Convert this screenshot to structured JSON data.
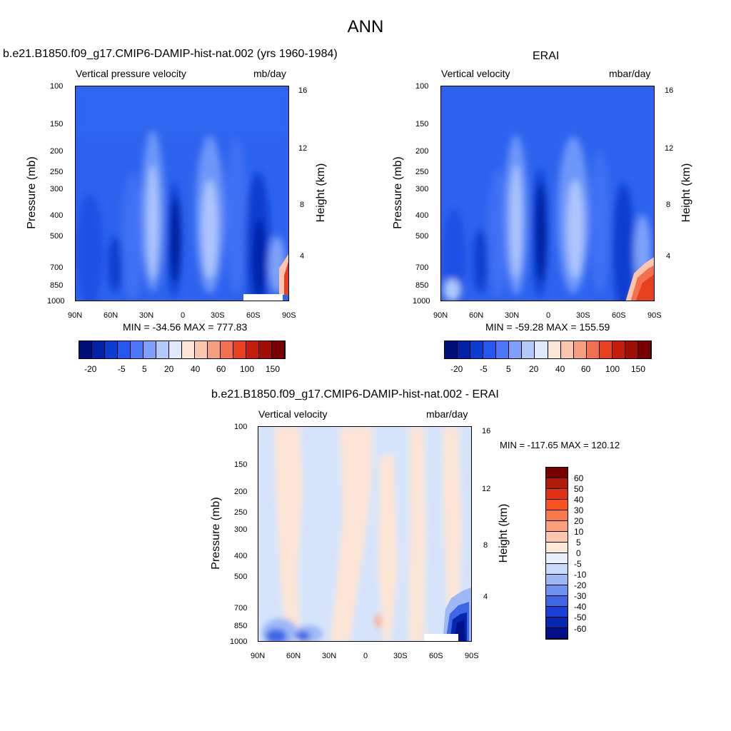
{
  "title": "ANN",
  "panels": [
    {
      "id": "model",
      "header": "b.e21.B1850.f09_g17.CMIP6-DAMIP-hist-nat.002 (yrs 1960-1984)",
      "variable": "Vertical pressure velocity",
      "units": "mb/day",
      "stats": "MIN = -34.56  MAX = 777.83"
    },
    {
      "id": "obs",
      "header": "ERAI",
      "variable": "Vertical velocity",
      "units": "mbar/day",
      "stats": "MIN = -59.28  MAX = 155.59"
    },
    {
      "id": "diff",
      "header": "b.e21.B1850.f09_g17.CMIP6-DAMIP-hist-nat.002 - ERAI",
      "variable": "Vertical velocity",
      "units": "mbar/day",
      "stats": "MIN = -117.65  MAX = 120.12"
    }
  ],
  "axes": {
    "ylabel_left": "Pressure (mb)",
    "ylabel_right": "Height (km)",
    "pressure_ticks": [
      "100",
      "150",
      "200",
      "250",
      "300",
      "400",
      "500",
      "700",
      "850",
      "1000"
    ],
    "height_ticks": [
      "16",
      "12",
      "8",
      "4"
    ],
    "lat_ticks": [
      "90N",
      "60N",
      "30N",
      "0",
      "30S",
      "60S",
      "90S"
    ]
  },
  "colorbars": {
    "top_labels": [
      "-20",
      "-5",
      "5",
      "20",
      "40",
      "60",
      "100",
      "150"
    ],
    "top_colors": [
      "#000e7a",
      "#0022a8",
      "#0a3cd0",
      "#2456f0",
      "#4a78f8",
      "#7ea0fb",
      "#b1c9fb",
      "#ddeafd",
      "#fde5d6",
      "#fbc6ad",
      "#f79e7e",
      "#f2704f",
      "#e6401f",
      "#c61e0c",
      "#a00e04",
      "#7a0000"
    ],
    "diff_labels": [
      "60",
      "50",
      "40",
      "30",
      "20",
      "10",
      "5",
      "0",
      "-5",
      "-10",
      "-20",
      "-30",
      "-40",
      "-50",
      "-60"
    ],
    "diff_colors": [
      "#7a0000",
      "#b01a08",
      "#e03212",
      "#fb5320",
      "#fb7848",
      "#fba07c",
      "#fcc7ad",
      "#fde8d8",
      "#e8eefb",
      "#c8d8f8",
      "#9cb8f5",
      "#6e92f0",
      "#3e66e6",
      "#1a40d6",
      "#0726b0",
      "#00108a"
    ]
  },
  "chart_data": [
    {
      "type": "heatmap",
      "title": "Vertical pressure velocity",
      "units": "mb/day",
      "x_ticks": [
        "90N",
        "60N",
        "30N",
        "0",
        "30S",
        "60S",
        "90S"
      ],
      "y_ticks": [
        "100",
        "150",
        "200",
        "250",
        "300",
        "400",
        "500",
        "700",
        "850",
        "1000"
      ],
      "min": -34.56,
      "max": 777.83,
      "features": [
        {
          "lat": "10N",
          "level": "250-1000",
          "value": -30
        },
        {
          "lat": "30N",
          "level": "150-850",
          "value": 10
        },
        {
          "lat": "20S",
          "level": "200-850",
          "value": 10
        },
        {
          "lat": "60S",
          "level": "300-1000",
          "value": -20
        },
        {
          "lat": "85S",
          "level": "600-850",
          "value": 150
        }
      ]
    },
    {
      "type": "heatmap",
      "title": "Vertical velocity",
      "units": "mbar/day",
      "x_ticks": [
        "90N",
        "60N",
        "30N",
        "0",
        "30S",
        "60S",
        "90S"
      ],
      "y_ticks": [
        "100",
        "150",
        "200",
        "250",
        "300",
        "400",
        "500",
        "700",
        "850",
        "1000"
      ],
      "min": -59.28,
      "max": 155.59,
      "features": [
        {
          "lat": "10N",
          "level": "200-1000",
          "value": -30
        },
        {
          "lat": "30N",
          "level": "150-850",
          "value": 10
        },
        {
          "lat": "20S",
          "level": "200-850",
          "value": 10
        },
        {
          "lat": "60S",
          "level": "300-1000",
          "value": -20
        },
        {
          "lat": "80S",
          "level": "700-1000",
          "value": 60
        }
      ]
    },
    {
      "type": "heatmap",
      "title": "Vertical velocity",
      "units": "mbar/day",
      "x_ticks": [
        "90N",
        "60N",
        "30N",
        "0",
        "30S",
        "60S",
        "90S"
      ],
      "y_ticks": [
        "100",
        "150",
        "200",
        "250",
        "300",
        "400",
        "500",
        "700",
        "850",
        "1000"
      ],
      "min": -117.65,
      "max": 120.12,
      "features": [
        {
          "lat": "85N",
          "level": "850-1000",
          "value": -40
        },
        {
          "lat": "80S",
          "level": "700-1000",
          "value": -60
        },
        {
          "lat": "5S",
          "level": "850",
          "value": 20
        }
      ]
    }
  ]
}
